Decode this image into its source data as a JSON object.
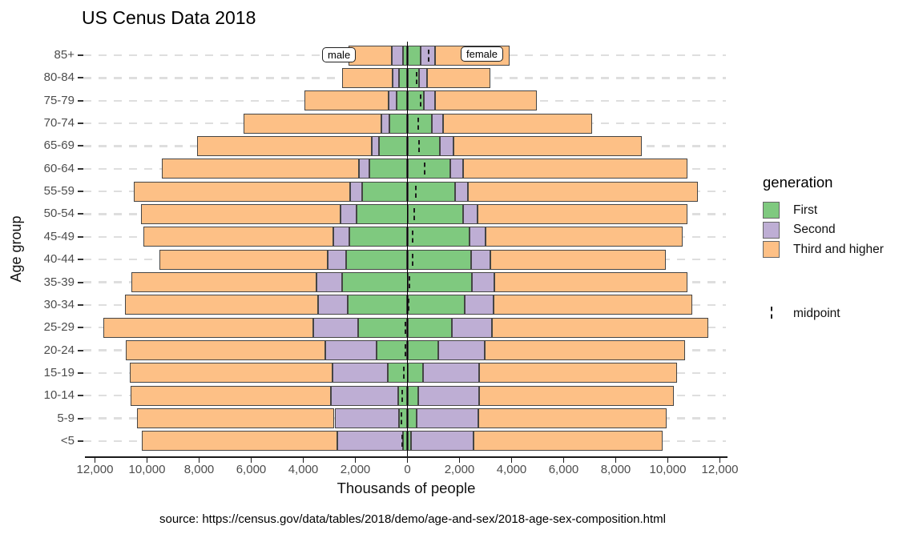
{
  "title": "US Cenus Data 2018",
  "caption": "source: https://census.gov/data/tables/2018/demo/age-and-sex/2018-age-sex-composition.html",
  "x_axis": {
    "label": "Thousands of people"
  },
  "y_axis": {
    "label": "Age group"
  },
  "side_labels": {
    "male": "male",
    "female": "female"
  },
  "legend": {
    "title": "generation",
    "items": [
      {
        "label": "First",
        "color": "#7FC97F"
      },
      {
        "label": "Second",
        "color": "#BEAED4"
      },
      {
        "label": "Third and higher",
        "color": "#FDC086"
      }
    ],
    "midpoint_label": "midpoint"
  },
  "chart_data": {
    "type": "bar",
    "subtype": "population_pyramid_stacked",
    "title": "US Cenus Data 2018",
    "xlabel": "Thousands of people",
    "ylabel": "Age group",
    "unit": "thousands of people",
    "xlim": [
      -12500,
      12500
    ],
    "grid": "dashed horizontal line per age group",
    "legend_position": "right",
    "stack_order_from_center": [
      "First",
      "Second",
      "Third and higher"
    ],
    "colors": {
      "First": "#7FC97F",
      "Second": "#BEAED4",
      "Third and higher": "#FDC086"
    },
    "x_ticks_values": [
      -12000,
      -10000,
      -8000,
      -6000,
      -4000,
      -2000,
      0,
      2000,
      4000,
      6000,
      8000,
      10000,
      12000
    ],
    "x_ticks_labels": [
      "12,000",
      "10,000",
      "8,000",
      "6,000",
      "4,000",
      "2,000",
      "0",
      "2,000",
      "4,000",
      "6,000",
      "8,000",
      "10,000",
      "12,000"
    ],
    "categories": [
      "85+",
      "80-84",
      "75-79",
      "70-74",
      "65-69",
      "60-64",
      "55-59",
      "50-54",
      "45-49",
      "40-44",
      "35-39",
      "30-34",
      "25-29",
      "20-24",
      "15-19",
      "10-14",
      "5-9",
      "<5"
    ],
    "rows": [
      {
        "age": "85+",
        "male": {
          "First": 170,
          "Second": 430,
          "Third and higher": 1660
        },
        "female": {
          "First": 510,
          "Second": 560,
          "Third and higher": 2850
        },
        "midpoint": 830
      },
      {
        "age": "80-84",
        "male": {
          "First": 310,
          "Second": 260,
          "Third and higher": 1930
        },
        "female": {
          "First": 440,
          "Second": 300,
          "Third and higher": 2440
        },
        "midpoint": 340
      },
      {
        "age": "75-79",
        "male": {
          "First": 420,
          "Second": 310,
          "Third and higher": 3230
        },
        "female": {
          "First": 640,
          "Second": 410,
          "Third and higher": 3930
        },
        "midpoint": 510
      },
      {
        "age": "70-74",
        "male": {
          "First": 690,
          "Second": 320,
          "Third and higher": 5280
        },
        "female": {
          "First": 950,
          "Second": 410,
          "Third and higher": 5740
        },
        "midpoint": 400
      },
      {
        "age": "65-69",
        "male": {
          "First": 1080,
          "Second": 280,
          "Third and higher": 6730
        },
        "female": {
          "First": 1260,
          "Second": 500,
          "Third and higher": 7240
        },
        "midpoint": 460
      },
      {
        "age": "60-64",
        "male": {
          "First": 1460,
          "Second": 410,
          "Third and higher": 7550
        },
        "female": {
          "First": 1640,
          "Second": 490,
          "Third and higher": 8620
        },
        "midpoint": 660
      },
      {
        "age": "55-59",
        "male": {
          "First": 1730,
          "Second": 480,
          "Third and higher": 8310
        },
        "female": {
          "First": 1840,
          "Second": 490,
          "Third and higher": 8820
        },
        "midpoint": 320
      },
      {
        "age": "50-54",
        "male": {
          "First": 1950,
          "Second": 620,
          "Third and higher": 7660
        },
        "female": {
          "First": 2130,
          "Second": 560,
          "Third and higher": 8050
        },
        "midpoint": 260
      },
      {
        "age": "45-49",
        "male": {
          "First": 2230,
          "Second": 620,
          "Third and higher": 7290
        },
        "female": {
          "First": 2390,
          "Second": 620,
          "Third and higher": 7560
        },
        "midpoint": 210
      },
      {
        "age": "40-44",
        "male": {
          "First": 2360,
          "Second": 690,
          "Third and higher": 6470
        },
        "female": {
          "First": 2440,
          "Second": 740,
          "Third and higher": 6750
        },
        "midpoint": 200
      },
      {
        "age": "35-39",
        "male": {
          "First": 2500,
          "Second": 990,
          "Third and higher": 7110
        },
        "female": {
          "First": 2480,
          "Second": 850,
          "Third and higher": 7430
        },
        "midpoint": 80
      },
      {
        "age": "30-34",
        "male": {
          "First": 2280,
          "Second": 1160,
          "Third and higher": 7410
        },
        "female": {
          "First": 2200,
          "Second": 1110,
          "Third and higher": 7640
        },
        "midpoint": 50
      },
      {
        "age": "25-29",
        "male": {
          "First": 1880,
          "Second": 1740,
          "Third and higher": 8070
        },
        "female": {
          "First": 1720,
          "Second": 1540,
          "Third and higher": 8280
        },
        "midpoint": -80
      },
      {
        "age": "20-24",
        "male": {
          "First": 1190,
          "Second": 1970,
          "Third and higher": 7670
        },
        "female": {
          "First": 1180,
          "Second": 1790,
          "Third and higher": 7690
        },
        "midpoint": -80
      },
      {
        "age": "15-19",
        "male": {
          "First": 750,
          "Second": 2130,
          "Third and higher": 7780
        },
        "female": {
          "First": 610,
          "Second": 2140,
          "Third and higher": 7610
        },
        "midpoint": -150
      },
      {
        "age": "10-14",
        "male": {
          "First": 360,
          "Second": 2590,
          "Third and higher": 7670
        },
        "female": {
          "First": 430,
          "Second": 2320,
          "Third and higher": 7480
        },
        "midpoint": -200
      },
      {
        "age": "5-9",
        "male": {
          "First": 330,
          "Second": 2470,
          "Third and higher": 7590
        },
        "female": {
          "First": 350,
          "Second": 2360,
          "Third and higher": 7230
        },
        "midpoint": -220
      },
      {
        "age": "<5",
        "male": {
          "First": 160,
          "Second": 2530,
          "Third and higher": 7520
        },
        "female": {
          "First": 150,
          "Second": 2380,
          "Third and higher": 7260
        },
        "midpoint": -210
      }
    ]
  }
}
